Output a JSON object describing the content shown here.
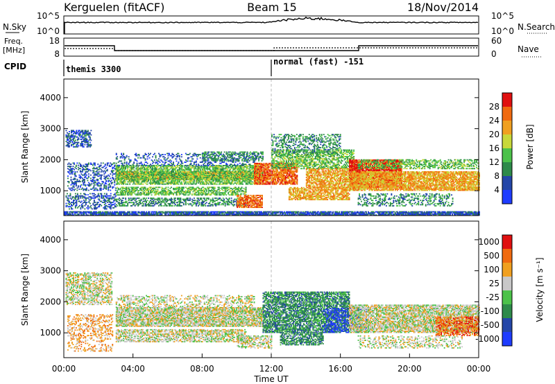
{
  "header": {
    "radar": "Kerguelen (fitACF)",
    "beam": "Beam 15",
    "date": "18/Nov/2014"
  },
  "nsky_panel": {
    "left_label": "N.Sky",
    "left_ticks": [
      "10^5",
      "10^0"
    ],
    "right_ticks": [
      "10^5",
      "10^0"
    ],
    "right_label": "N.Search"
  },
  "freq_panel": {
    "left_label_line1": "Freq.",
    "left_label_line2": "[MHz]",
    "left_ticks": [
      "18",
      "8"
    ],
    "right_ticks": [
      "60",
      "0"
    ],
    "right_label": "Nave"
  },
  "cpid": {
    "label": "CPID",
    "modes": [
      {
        "text": "themis 3300",
        "start_hour": 0
      },
      {
        "text": "normal (fast) -151",
        "start_hour": 12
      }
    ]
  },
  "chart_data": [
    {
      "type": "heatmap",
      "name": "power",
      "ylabel": "Slant Range [km]",
      "ylim": [
        200,
        4600
      ],
      "yticks": [
        "1000",
        "2000",
        "3000",
        "4000"
      ],
      "xlim": [
        0,
        24
      ],
      "colorbar": {
        "label": "Power [dB]",
        "ticks": [
          "4",
          "8",
          "12",
          "16",
          "20",
          "24",
          "28"
        ],
        "colors": [
          "#1e3cff",
          "#2446a8",
          "#2e8a4a",
          "#4cc24a",
          "#c8d83a",
          "#f0a020",
          "#f06a10",
          "#e01010"
        ]
      },
      "bands": [
        {
          "t0": 0.1,
          "t1": 1.6,
          "r0": 2400,
          "r1": 2950,
          "level": 1,
          "dens": 0.55
        },
        {
          "t0": 0.2,
          "t1": 3.0,
          "r0": 1000,
          "r1": 1900,
          "level": 1,
          "dens": 0.35
        },
        {
          "t0": 0.1,
          "t1": 3.0,
          "r0": 400,
          "r1": 900,
          "level": 1,
          "dens": 0.4
        },
        {
          "t0": 3.0,
          "t1": 11.5,
          "r0": 1350,
          "r1": 1600,
          "level": 5,
          "dens": 0.9
        },
        {
          "t0": 3.0,
          "t1": 11.5,
          "r0": 1200,
          "r1": 1800,
          "level": 3,
          "dens": 0.7
        },
        {
          "t0": 3.0,
          "t1": 10.5,
          "r0": 850,
          "r1": 1100,
          "level": 3,
          "dens": 0.6
        },
        {
          "t0": 3.0,
          "t1": 10.5,
          "r0": 500,
          "r1": 750,
          "level": 2,
          "dens": 0.5
        },
        {
          "t0": 3.0,
          "t1": 11.0,
          "r0": 1800,
          "r1": 2200,
          "level": 1,
          "dens": 0.25
        },
        {
          "t0": 8.0,
          "t1": 11.5,
          "r0": 1950,
          "r1": 2250,
          "level": 2,
          "dens": 0.45
        },
        {
          "t0": 10.0,
          "t1": 11.5,
          "r0": 450,
          "r1": 850,
          "level": 6,
          "dens": 0.75
        },
        {
          "t0": 11.0,
          "t1": 13.5,
          "r0": 1200,
          "r1": 1900,
          "level": 6,
          "dens": 0.8
        },
        {
          "t0": 12.0,
          "t1": 16.8,
          "r0": 1700,
          "r1": 2300,
          "level": 3,
          "dens": 0.6
        },
        {
          "t0": 12.0,
          "t1": 16.0,
          "r0": 2200,
          "r1": 2800,
          "level": 2,
          "dens": 0.35
        },
        {
          "t0": 13.0,
          "t1": 16.5,
          "r0": 700,
          "r1": 1100,
          "level": 5,
          "dens": 0.7
        },
        {
          "t0": 14.0,
          "t1": 17.0,
          "r0": 1100,
          "r1": 1700,
          "level": 5,
          "dens": 0.7
        },
        {
          "t0": 16.5,
          "t1": 19.5,
          "r0": 1100,
          "r1": 2000,
          "level": 7,
          "dens": 0.85
        },
        {
          "t0": 16.5,
          "t1": 24.0,
          "r0": 1000,
          "r1": 1600,
          "level": 5,
          "dens": 0.8
        },
        {
          "t0": 17.0,
          "t1": 24.0,
          "r0": 1700,
          "r1": 2000,
          "level": 3,
          "dens": 0.5
        },
        {
          "t0": 17.0,
          "t1": 22.5,
          "r0": 500,
          "r1": 900,
          "level": 2,
          "dens": 0.35
        },
        {
          "t0": 0.0,
          "t1": 24.0,
          "r0": 200,
          "r1": 330,
          "level": 1,
          "dens": 0.85
        }
      ]
    },
    {
      "type": "heatmap",
      "name": "velocity",
      "ylabel": "Slant Range [km]",
      "ylim": [
        200,
        4600
      ],
      "yticks": [
        "1000",
        "2000",
        "3000",
        "4000"
      ],
      "xlim": [
        0,
        24
      ],
      "xticks": [
        "00:00",
        "04:00",
        "08:00",
        "12:00",
        "16:00",
        "20:00",
        "00:00"
      ],
      "xlabel": "Time UT",
      "colorbar": {
        "label": "Velocity [m s⁻¹]",
        "ticks": [
          "1000",
          "500",
          "100",
          "25",
          "-25",
          "-100",
          "-500",
          "-1000"
        ],
        "colors": [
          "#1e3cff",
          "#2446a8",
          "#2e8a4a",
          "#4cc24a",
          "#c8c8c8",
          "#f0a020",
          "#f06a10",
          "#e01010"
        ]
      },
      "bands": [
        {
          "t0": 0.1,
          "t1": 2.8,
          "r0": 1900,
          "r1": 2950,
          "level": 4,
          "dens": 0.5
        },
        {
          "t0": 0.2,
          "t1": 2.8,
          "r0": 900,
          "r1": 1600,
          "level": 5,
          "dens": 0.35
        },
        {
          "t0": 0.2,
          "t1": 2.8,
          "r0": 400,
          "r1": 900,
          "level": 5,
          "dens": 0.25
        },
        {
          "t0": 3.0,
          "t1": 11.5,
          "r0": 1200,
          "r1": 1800,
          "level": 4,
          "dens": 0.8
        },
        {
          "t0": 3.0,
          "t1": 10.5,
          "r0": 700,
          "r1": 1100,
          "level": 4,
          "dens": 0.6
        },
        {
          "t0": 3.0,
          "t1": 11.0,
          "r0": 1800,
          "r1": 2200,
          "level": 4,
          "dens": 0.35
        },
        {
          "t0": 10.0,
          "t1": 12.0,
          "r0": 500,
          "r1": 900,
          "level": 4,
          "dens": 0.55
        },
        {
          "t0": 11.5,
          "t1": 16.5,
          "r0": 1000,
          "r1": 2300,
          "level": 2,
          "dens": 0.7
        },
        {
          "t0": 12.5,
          "t1": 15.0,
          "r0": 600,
          "r1": 1000,
          "level": 2,
          "dens": 0.6
        },
        {
          "t0": 15.0,
          "t1": 17.5,
          "r0": 1000,
          "r1": 1800,
          "level": 0,
          "dens": 0.35
        },
        {
          "t0": 16.5,
          "t1": 24.0,
          "r0": 1000,
          "r1": 1900,
          "level": 4,
          "dens": 0.75
        },
        {
          "t0": 21.5,
          "t1": 24.0,
          "r0": 900,
          "r1": 1500,
          "level": 6,
          "dens": 0.55
        },
        {
          "t0": 17.0,
          "t1": 23.0,
          "r0": 500,
          "r1": 900,
          "level": 4,
          "dens": 0.3
        }
      ]
    }
  ]
}
